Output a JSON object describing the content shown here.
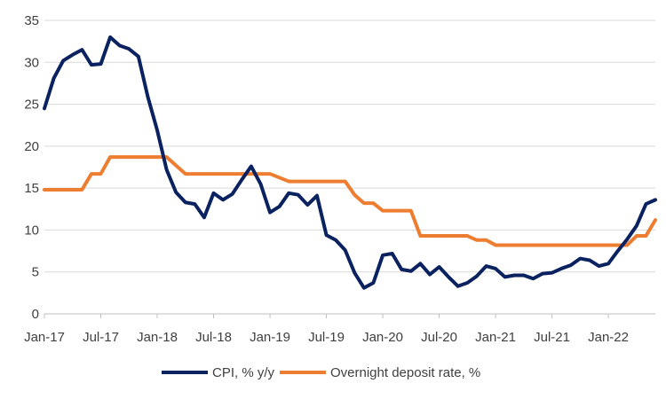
{
  "chart_data": {
    "type": "line",
    "title": "",
    "xlabel": "",
    "ylabel": "",
    "ylim": [
      0,
      35
    ],
    "yticks": [
      0,
      5,
      10,
      15,
      20,
      25,
      30,
      35
    ],
    "grid": "horizontal",
    "legend_position": "bottom",
    "x_tick_labels": [
      "Jan-17",
      "Jul-17",
      "Jan-18",
      "Jul-18",
      "Jan-19",
      "Jul-19",
      "Jan-20",
      "Jul-20",
      "Jan-21",
      "Jul-21",
      "Jan-22"
    ],
    "x_start": "2017-01",
    "x_end": "2022-06",
    "series": [
      {
        "name": "CPI, % y/y",
        "color": "#0b2260",
        "points": [
          [
            "2017-01",
            24.5
          ],
          [
            "2017-02",
            28.1
          ],
          [
            "2017-03",
            30.2
          ],
          [
            "2017-04",
            30.9
          ],
          [
            "2017-05",
            31.5
          ],
          [
            "2017-06",
            29.7
          ],
          [
            "2017-07",
            29.8
          ],
          [
            "2017-08",
            33.0
          ],
          [
            "2017-09",
            32.0
          ],
          [
            "2017-10",
            31.6
          ],
          [
            "2017-11",
            30.7
          ],
          [
            "2017-12",
            25.9
          ],
          [
            "2018-01",
            21.9
          ],
          [
            "2018-02",
            17.2
          ],
          [
            "2018-03",
            14.5
          ],
          [
            "2018-04",
            13.3
          ],
          [
            "2018-05",
            13.1
          ],
          [
            "2018-06",
            11.5
          ],
          [
            "2018-07",
            14.4
          ],
          [
            "2018-08",
            13.6
          ],
          [
            "2018-09",
            14.3
          ],
          [
            "2018-10",
            16.0
          ],
          [
            "2018-11",
            17.6
          ],
          [
            "2018-12",
            15.5
          ],
          [
            "2019-01",
            12.1
          ],
          [
            "2019-02",
            12.8
          ],
          [
            "2019-03",
            14.4
          ],
          [
            "2019-04",
            14.2
          ],
          [
            "2019-05",
            13.0
          ],
          [
            "2019-06",
            14.1
          ],
          [
            "2019-07",
            9.4
          ],
          [
            "2019-08",
            8.8
          ],
          [
            "2019-09",
            7.6
          ],
          [
            "2019-10",
            4.9
          ],
          [
            "2019-11",
            3.1
          ],
          [
            "2019-12",
            3.7
          ],
          [
            "2020-01",
            7.0
          ],
          [
            "2020-02",
            7.2
          ],
          [
            "2020-03",
            5.3
          ],
          [
            "2020-04",
            5.1
          ],
          [
            "2020-05",
            6.0
          ],
          [
            "2020-06",
            4.7
          ],
          [
            "2020-07",
            5.6
          ],
          [
            "2020-08",
            4.4
          ],
          [
            "2020-09",
            3.3
          ],
          [
            "2020-10",
            3.7
          ],
          [
            "2020-11",
            4.5
          ],
          [
            "2020-12",
            5.7
          ],
          [
            "2021-01",
            5.4
          ],
          [
            "2021-02",
            4.4
          ],
          [
            "2021-03",
            4.6
          ],
          [
            "2021-04",
            4.6
          ],
          [
            "2021-05",
            4.2
          ],
          [
            "2021-06",
            4.8
          ],
          [
            "2021-07",
            4.9
          ],
          [
            "2021-08",
            5.4
          ],
          [
            "2021-09",
            5.8
          ],
          [
            "2021-10",
            6.6
          ],
          [
            "2021-11",
            6.4
          ],
          [
            "2021-12",
            5.7
          ],
          [
            "2022-01",
            6.0
          ],
          [
            "2022-02",
            7.5
          ],
          [
            "2022-03",
            8.9
          ],
          [
            "2022-04",
            10.5
          ],
          [
            "2022-05",
            13.1
          ],
          [
            "2022-06",
            13.6
          ]
        ]
      },
      {
        "name": "Overnight deposit rate, %",
        "color": "#ed7d31",
        "points": [
          [
            "2017-01",
            14.8
          ],
          [
            "2017-05",
            14.8
          ],
          [
            "2017-06",
            16.7
          ],
          [
            "2017-07",
            16.7
          ],
          [
            "2017-08",
            18.7
          ],
          [
            "2018-02",
            18.7
          ],
          [
            "2018-04",
            16.7
          ],
          [
            "2019-01",
            16.7
          ],
          [
            "2019-03",
            15.8
          ],
          [
            "2019-09",
            15.8
          ],
          [
            "2019-10",
            14.2
          ],
          [
            "2019-11",
            13.2
          ],
          [
            "2019-12",
            13.2
          ],
          [
            "2020-01",
            12.3
          ],
          [
            "2020-04",
            12.3
          ],
          [
            "2020-05",
            9.3
          ],
          [
            "2020-10",
            9.3
          ],
          [
            "2020-11",
            8.8
          ],
          [
            "2020-12",
            8.8
          ],
          [
            "2021-01",
            8.2
          ],
          [
            "2022-03",
            8.2
          ],
          [
            "2022-04",
            9.3
          ],
          [
            "2022-05",
            9.3
          ],
          [
            "2022-06",
            11.2
          ]
        ]
      }
    ]
  }
}
